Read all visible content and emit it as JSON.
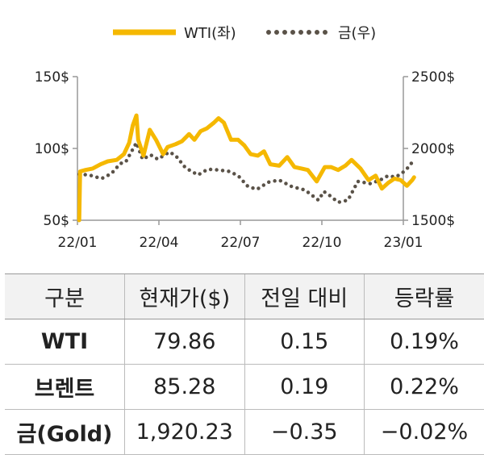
{
  "chart_data": {
    "type": "line",
    "legend": {
      "placement": "top-center"
    },
    "grid": false,
    "x_ticks": [
      "22/01",
      "22/04",
      "22/07",
      "22/10",
      "23/01"
    ],
    "y_left": {
      "ticks": [
        "50$",
        "100$",
        "150$"
      ],
      "range": [
        50,
        150
      ]
    },
    "y_right": {
      "ticks": [
        "1500$",
        "2000$",
        "2500$"
      ],
      "range": [
        1500,
        2500
      ]
    },
    "series": [
      {
        "name": "WTI(좌)",
        "axis": "left",
        "style": "solid",
        "color": "#f5b800",
        "points": [
          [
            "2022-01-03",
            50
          ],
          [
            "2022-01-04",
            84
          ],
          [
            "2022-01-10",
            85
          ],
          [
            "2022-01-18",
            86
          ],
          [
            "2022-01-27",
            89
          ],
          [
            "2022-02-04",
            91
          ],
          [
            "2022-02-14",
            92
          ],
          [
            "2022-02-22",
            96
          ],
          [
            "2022-02-28",
            104
          ],
          [
            "2022-03-04",
            116
          ],
          [
            "2022-03-08",
            123
          ],
          [
            "2022-03-10",
            106
          ],
          [
            "2022-03-16",
            95
          ],
          [
            "2022-03-23",
            113
          ],
          [
            "2022-03-30",
            106
          ],
          [
            "2022-04-07",
            96
          ],
          [
            "2022-04-12",
            101
          ],
          [
            "2022-04-21",
            103
          ],
          [
            "2022-04-28",
            105
          ],
          [
            "2022-05-06",
            110
          ],
          [
            "2022-05-12",
            106
          ],
          [
            "2022-05-19",
            112
          ],
          [
            "2022-05-26",
            114
          ],
          [
            "2022-06-03",
            118
          ],
          [
            "2022-06-08",
            121
          ],
          [
            "2022-06-14",
            118
          ],
          [
            "2022-06-22",
            106
          ],
          [
            "2022-06-30",
            106
          ],
          [
            "2022-07-07",
            102
          ],
          [
            "2022-07-14",
            96
          ],
          [
            "2022-07-22",
            95
          ],
          [
            "2022-07-29",
            98
          ],
          [
            "2022-08-05",
            89
          ],
          [
            "2022-08-15",
            88
          ],
          [
            "2022-08-24",
            94
          ],
          [
            "2022-09-01",
            87
          ],
          [
            "2022-09-09",
            86
          ],
          [
            "2022-09-16",
            85
          ],
          [
            "2022-09-26",
            77
          ],
          [
            "2022-10-05",
            87
          ],
          [
            "2022-10-12",
            87
          ],
          [
            "2022-10-20",
            85
          ],
          [
            "2022-10-28",
            88
          ],
          [
            "2022-11-04",
            92
          ],
          [
            "2022-11-14",
            86
          ],
          [
            "2022-11-23",
            78
          ],
          [
            "2022-12-01",
            81
          ],
          [
            "2022-12-08",
            72
          ],
          [
            "2022-12-15",
            76
          ],
          [
            "2022-12-22",
            79
          ],
          [
            "2022-12-29",
            78
          ],
          [
            "2023-01-05",
            74
          ],
          [
            "2023-01-11",
            78
          ],
          [
            "2023-01-13",
            79.86
          ]
        ]
      },
      {
        "name": "금(우)",
        "axis": "right",
        "style": "dotted",
        "color": "#5a5248",
        "points": [
          [
            "2022-01-03",
            1820
          ],
          [
            "2022-01-14",
            1815
          ],
          [
            "2022-01-28",
            1790
          ],
          [
            "2022-02-08",
            1825
          ],
          [
            "2022-02-18",
            1895
          ],
          [
            "2022-02-24",
            1905
          ],
          [
            "2022-03-08",
            2040
          ],
          [
            "2022-03-15",
            1925
          ],
          [
            "2022-03-24",
            1955
          ],
          [
            "2022-04-01",
            1925
          ],
          [
            "2022-04-14",
            1975
          ],
          [
            "2022-04-21",
            1950
          ],
          [
            "2022-05-02",
            1865
          ],
          [
            "2022-05-16",
            1815
          ],
          [
            "2022-05-27",
            1855
          ],
          [
            "2022-06-08",
            1850
          ],
          [
            "2022-06-20",
            1840
          ],
          [
            "2022-06-30",
            1810
          ],
          [
            "2022-07-11",
            1735
          ],
          [
            "2022-07-21",
            1715
          ],
          [
            "2022-08-03",
            1765
          ],
          [
            "2022-08-15",
            1780
          ],
          [
            "2022-08-29",
            1735
          ],
          [
            "2022-09-13",
            1710
          ],
          [
            "2022-09-28",
            1640
          ],
          [
            "2022-10-04",
            1700
          ],
          [
            "2022-10-11",
            1670
          ],
          [
            "2022-10-20",
            1625
          ],
          [
            "2022-10-31",
            1640
          ],
          [
            "2022-11-11",
            1770
          ],
          [
            "2022-11-25",
            1755
          ],
          [
            "2022-12-06",
            1780
          ],
          [
            "2022-12-15",
            1810
          ],
          [
            "2022-12-23",
            1800
          ],
          [
            "2022-12-30",
            1825
          ],
          [
            "2023-01-06",
            1865
          ],
          [
            "2023-01-13",
            1920.23
          ]
        ]
      }
    ]
  },
  "table": {
    "headers": [
      "구분",
      "현재가($)",
      "전일 대비",
      "등락률"
    ],
    "rows": [
      [
        "WTI",
        "79.86",
        "0.15",
        "0.19%"
      ],
      [
        "브렌트",
        "85.28",
        "0.19",
        "0.22%"
      ],
      [
        "금(Gold)",
        "1,920.23",
        "−0.35",
        "−0.02%"
      ]
    ]
  }
}
